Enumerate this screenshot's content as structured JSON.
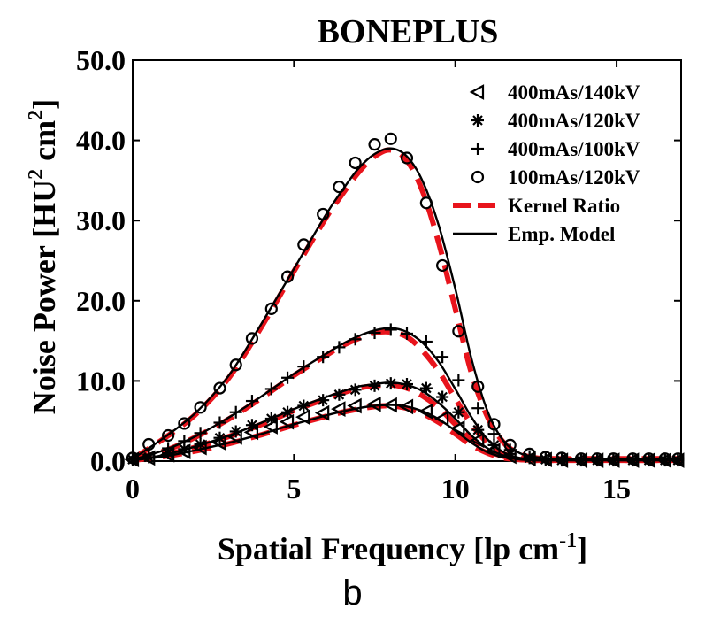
{
  "chart_data": {
    "type": "line",
    "title": "BONEPLUS",
    "xlabel": "Spatial Frequency [lp cm",
    "xlabel_sup": "-1",
    "xlabel_end": "]",
    "ylabel": "Noise Power [HU",
    "ylabel_sup1": "2",
    "ylabel_mid": " cm",
    "ylabel_sup2": "2",
    "ylabel_end": "]",
    "xlim": [
      0,
      17
    ],
    "ylim": [
      0,
      50
    ],
    "xticks": [
      0,
      5,
      10,
      15
    ],
    "xtick_labels": [
      "0",
      "5",
      "10",
      "15"
    ],
    "yticks": [
      0,
      10,
      20,
      30,
      40,
      50
    ],
    "ytick_labels": [
      "0.0",
      "10.0",
      "20.0",
      "30.0",
      "40.0",
      "50.0"
    ],
    "grid": false,
    "legend_position": "top-right",
    "series": [
      {
        "name": "400mAs/140kV",
        "marker": "triangle-left",
        "color": "#000000",
        "x": [
          0,
          0.5,
          1.1,
          1.6,
          2.1,
          2.7,
          3.2,
          3.7,
          4.3,
          4.8,
          5.3,
          5.9,
          6.4,
          6.9,
          7.5,
          8.0,
          8.5,
          9.1,
          9.6,
          10.1,
          10.7,
          11.2,
          11.7,
          12.3,
          12.8,
          13.3,
          13.9,
          14.4,
          14.9,
          15.5,
          16.0,
          16.5,
          16.9
        ],
        "y": [
          0.2,
          0.4,
          0.8,
          1.2,
          1.7,
          2.3,
          3.0,
          3.6,
          4.3,
          4.9,
          5.5,
          6.0,
          6.5,
          6.9,
          7.1,
          7.0,
          6.8,
          6.2,
          5.3,
          4.1,
          2.6,
          1.3,
          0.6,
          0.3,
          0.2,
          0.1,
          0.1,
          0.1,
          0.1,
          0.1,
          0.1,
          0.1,
          0.1
        ]
      },
      {
        "name": "400mAs/120kV",
        "marker": "asterisk",
        "color": "#000000",
        "x": [
          0,
          0.5,
          1.1,
          1.6,
          2.1,
          2.7,
          3.2,
          3.7,
          4.3,
          4.8,
          5.3,
          5.9,
          6.4,
          6.9,
          7.5,
          8.0,
          8.5,
          9.1,
          9.6,
          10.1,
          10.7,
          11.2,
          11.7,
          12.3,
          12.8,
          13.3,
          13.9,
          14.4,
          14.9,
          15.5,
          16.0,
          16.5,
          16.9
        ],
        "y": [
          0.2,
          0.5,
          1.0,
          1.5,
          2.1,
          2.9,
          3.7,
          4.5,
          5.3,
          6.1,
          6.9,
          7.6,
          8.3,
          8.9,
          9.4,
          9.7,
          9.6,
          9.1,
          8.0,
          6.1,
          3.9,
          2.0,
          0.9,
          0.4,
          0.2,
          0.1,
          0.1,
          0.1,
          0.1,
          0.1,
          0.1,
          0.1,
          0.1
        ]
      },
      {
        "name": "400mAs/100kV",
        "marker": "plus",
        "color": "#000000",
        "x": [
          0,
          0.5,
          1.1,
          1.6,
          2.1,
          2.7,
          3.2,
          3.7,
          4.3,
          4.8,
          5.3,
          5.9,
          6.4,
          6.9,
          7.5,
          8.0,
          8.5,
          9.1,
          9.6,
          10.1,
          10.7,
          11.2,
          11.7,
          12.3,
          12.8,
          13.3,
          13.9,
          14.4,
          14.9,
          15.5,
          16.0,
          16.5,
          16.9
        ],
        "y": [
          0.3,
          0.8,
          1.6,
          2.5,
          3.5,
          4.8,
          6.1,
          7.5,
          9.0,
          10.4,
          11.8,
          13.0,
          14.2,
          15.2,
          16.0,
          16.4,
          15.9,
          14.9,
          13.0,
          10.1,
          6.6,
          3.4,
          1.4,
          0.6,
          0.3,
          0.2,
          0.2,
          0.2,
          0.2,
          0.2,
          0.2,
          0.2,
          0.2
        ]
      },
      {
        "name": "100mAs/120kV",
        "marker": "circle",
        "color": "#000000",
        "x": [
          0,
          0.5,
          1.1,
          1.6,
          2.1,
          2.7,
          3.2,
          3.7,
          4.3,
          4.8,
          5.3,
          5.9,
          6.4,
          6.9,
          7.5,
          8.0,
          8.5,
          9.1,
          9.6,
          10.1,
          10.7,
          11.2,
          11.7,
          12.3,
          12.8,
          13.3,
          13.9,
          14.4,
          14.9,
          15.5,
          16.0,
          16.5,
          16.9
        ],
        "y": [
          0.4,
          2.1,
          3.2,
          4.7,
          6.7,
          9.1,
          12.0,
          15.3,
          19.0,
          23.0,
          27.0,
          30.8,
          34.2,
          37.2,
          39.5,
          40.2,
          37.8,
          32.2,
          24.4,
          16.2,
          9.3,
          4.6,
          2.0,
          0.9,
          0.5,
          0.4,
          0.3,
          0.3,
          0.3,
          0.3,
          0.3,
          0.3,
          0.3
        ]
      },
      {
        "name": "Kernel Ratio",
        "line": "dashed",
        "color": "#e8141c",
        "curves": [
          {
            "x": [
              0,
              1,
              2,
              3,
              4,
              5,
              6,
              6.5,
              7,
              7.5,
              8,
              8.5,
              9,
              9.5,
              10,
              10.5,
              11,
              11.5,
              12,
              12.5,
              13,
              14,
              15,
              16,
              17
            ],
            "y": [
              0.3,
              2.9,
              6.0,
              10.5,
              16.8,
              23.7,
              30.4,
              33.3,
              36.0,
              38.0,
              38.8,
              37.5,
              33.5,
              27.0,
              19.0,
              11.0,
              5.5,
              2.3,
              0.9,
              0.4,
              0.3,
              0.3,
              0.3,
              0.3,
              0.3
            ]
          },
          {
            "x": [
              0,
              1,
              2,
              3,
              4,
              5,
              6,
              6.5,
              7,
              7.5,
              8,
              8.5,
              9,
              9.5,
              10,
              10.5,
              11,
              11.5,
              12,
              12.5,
              13,
              14,
              15,
              16,
              17
            ],
            "y": [
              0.2,
              1.3,
              3.1,
              5.3,
              7.9,
              10.7,
              13.2,
              14.4,
              15.3,
              16.0,
              16.1,
              15.5,
              13.7,
              11.1,
              7.8,
              4.6,
              2.3,
              0.9,
              0.4,
              0.2,
              0.2,
              0.2,
              0.2,
              0.2,
              0.2
            ]
          },
          {
            "x": [
              0,
              1,
              2,
              3,
              4,
              5,
              6,
              6.5,
              7,
              7.5,
              8,
              8.5,
              9,
              9.5,
              10,
              10.5,
              11,
              11.5,
              12,
              12.5,
              13,
              14,
              15,
              16,
              17
            ],
            "y": [
              0.1,
              0.8,
              1.8,
              3.1,
              4.6,
              6.3,
              7.8,
              8.5,
              9.1,
              9.4,
              9.5,
              9.1,
              8.1,
              6.6,
              4.6,
              2.7,
              1.3,
              0.6,
              0.2,
              0.1,
              0.1,
              0.1,
              0.1,
              0.1,
              0.1
            ]
          },
          {
            "x": [
              0,
              1,
              2,
              3,
              4,
              5,
              6,
              6.5,
              7,
              7.5,
              8,
              8.5,
              9,
              9.5,
              10,
              10.5,
              11,
              11.5,
              12,
              12.5,
              13,
              14,
              15,
              16,
              17
            ],
            "y": [
              0.1,
              0.6,
              1.3,
              2.2,
              3.3,
              4.5,
              5.6,
              6.1,
              6.5,
              6.8,
              6.9,
              6.6,
              5.9,
              4.8,
              3.4,
              2.0,
              1.0,
              0.4,
              0.2,
              0.1,
              0.1,
              0.1,
              0.1,
              0.1,
              0.1
            ]
          }
        ]
      },
      {
        "name": "Emp. Model",
        "line": "solid",
        "color": "#000000",
        "curves": [
          {
            "x": [
              0,
              1,
              2,
              3,
              4,
              5,
              6,
              6.5,
              7,
              7.5,
              8,
              8.5,
              9,
              9.5,
              10,
              10.5,
              11,
              11.5,
              12,
              12.5,
              13,
              14,
              15,
              16,
              17
            ],
            "y": [
              0.3,
              3.0,
              6.2,
              10.8,
              17.2,
              24.0,
              30.8,
              33.8,
              36.5,
              38.3,
              39.0,
              38.0,
              34.8,
              29.2,
              21.5,
              12.8,
              6.2,
              2.5,
              1.0,
              0.5,
              0.3,
              0.3,
              0.3,
              0.3,
              0.3
            ]
          },
          {
            "x": [
              0,
              1,
              2,
              3,
              4,
              5,
              6,
              6.5,
              7,
              7.5,
              8,
              8.5,
              9,
              9.5,
              10,
              10.5,
              11,
              11.5,
              12,
              12.5,
              13,
              14,
              15,
              16,
              17
            ],
            "y": [
              0.2,
              1.4,
              3.2,
              5.5,
              8.1,
              10.9,
              13.4,
              14.6,
              15.6,
              16.3,
              16.6,
              16.1,
              14.7,
              12.3,
              9.0,
              5.5,
              2.7,
              1.1,
              0.4,
              0.2,
              0.2,
              0.2,
              0.2,
              0.2,
              0.2
            ]
          },
          {
            "x": [
              0,
              1,
              2,
              3,
              4,
              5,
              6,
              6.5,
              7,
              7.5,
              8,
              8.5,
              9,
              9.5,
              10,
              10.5,
              11,
              11.5,
              12,
              12.5,
              13,
              14,
              15,
              16,
              17
            ],
            "y": [
              0.1,
              0.8,
              1.9,
              3.2,
              4.8,
              6.5,
              8.0,
              8.7,
              9.3,
              9.6,
              9.8,
              9.5,
              8.7,
              7.2,
              5.3,
              3.2,
              1.6,
              0.7,
              0.3,
              0.1,
              0.1,
              0.1,
              0.1,
              0.1,
              0.1
            ]
          },
          {
            "x": [
              0,
              1,
              2,
              3,
              4,
              5,
              6,
              6.5,
              7,
              7.5,
              8,
              8.5,
              9,
              9.5,
              10,
              10.5,
              11,
              11.5,
              12,
              12.5,
              13,
              14,
              15,
              16,
              17
            ],
            "y": [
              0.1,
              0.6,
              1.4,
              2.3,
              3.4,
              4.6,
              5.7,
              6.2,
              6.6,
              6.9,
              7.0,
              6.8,
              6.2,
              5.2,
              3.8,
              2.3,
              1.1,
              0.5,
              0.2,
              0.1,
              0.1,
              0.1,
              0.1,
              0.1,
              0.1
            ]
          }
        ]
      }
    ]
  },
  "panel_label": "b"
}
